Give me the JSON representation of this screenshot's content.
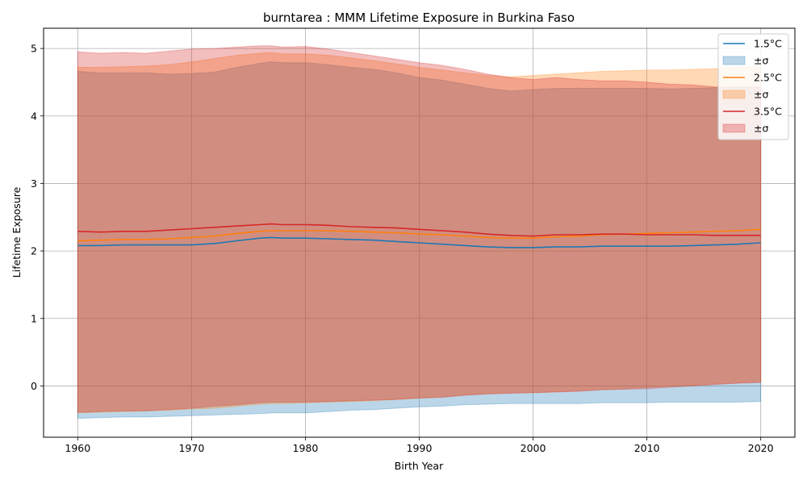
{
  "chart_data": {
    "type": "line",
    "title": "burntarea : MMM Lifetime Exposure in Burkina Faso",
    "xlabel": "Birth Year",
    "ylabel": "Lifetime Exposure",
    "xlim": [
      1957,
      2023
    ],
    "ylim": [
      -0.76,
      5.3
    ],
    "xticks": [
      1960,
      1970,
      1980,
      1990,
      2000,
      2010,
      2020
    ],
    "yticks": [
      0,
      1,
      2,
      3,
      4,
      5
    ],
    "grid": true,
    "legend_position": "top-right",
    "x": [
      1960,
      1962,
      1964,
      1966,
      1968,
      1970,
      1972,
      1974,
      1976,
      1977,
      1978,
      1980,
      1982,
      1984,
      1986,
      1988,
      1990,
      1992,
      1994,
      1996,
      1998,
      2000,
      2002,
      2004,
      2006,
      2008,
      2010,
      2012,
      2014,
      2016,
      2018,
      2020
    ],
    "series": [
      {
        "name": "1.5°C",
        "color": "#1f77b4",
        "band_color": "#1f77b4",
        "band_label": "±σ",
        "mean": [
          2.08,
          2.08,
          2.09,
          2.09,
          2.09,
          2.09,
          2.11,
          2.15,
          2.19,
          2.2,
          2.19,
          2.19,
          2.18,
          2.17,
          2.16,
          2.14,
          2.12,
          2.1,
          2.08,
          2.06,
          2.05,
          2.05,
          2.06,
          2.06,
          2.07,
          2.07,
          2.07,
          2.07,
          2.08,
          2.09,
          2.1,
          2.12
        ],
        "upper": [
          4.66,
          4.64,
          4.64,
          4.64,
          4.62,
          4.63,
          4.65,
          4.72,
          4.78,
          4.8,
          4.79,
          4.79,
          4.76,
          4.72,
          4.69,
          4.64,
          4.57,
          4.53,
          4.47,
          4.41,
          4.37,
          4.39,
          4.41,
          4.41,
          4.41,
          4.41,
          4.41,
          4.4,
          4.41,
          4.42,
          4.43,
          4.43
        ],
        "lower": [
          -0.48,
          -0.47,
          -0.46,
          -0.46,
          -0.45,
          -0.44,
          -0.43,
          -0.42,
          -0.41,
          -0.4,
          -0.4,
          -0.4,
          -0.38,
          -0.36,
          -0.35,
          -0.33,
          -0.31,
          -0.3,
          -0.28,
          -0.27,
          -0.26,
          -0.26,
          -0.26,
          -0.26,
          -0.25,
          -0.25,
          -0.25,
          -0.24,
          -0.24,
          -0.24,
          -0.24,
          -0.23
        ]
      },
      {
        "name": "2.5°C",
        "color": "#ff7f0e",
        "band_color": "#ff7f0e",
        "band_label": "±σ",
        "mean": [
          2.15,
          2.16,
          2.17,
          2.17,
          2.18,
          2.2,
          2.22,
          2.26,
          2.29,
          2.3,
          2.3,
          2.3,
          2.3,
          2.29,
          2.28,
          2.27,
          2.25,
          2.24,
          2.22,
          2.2,
          2.19,
          2.19,
          2.21,
          2.22,
          2.24,
          2.25,
          2.26,
          2.27,
          2.28,
          2.29,
          2.3,
          2.32
        ],
        "upper": [
          4.72,
          4.72,
          4.73,
          4.74,
          4.76,
          4.8,
          4.85,
          4.9,
          4.93,
          4.94,
          4.92,
          4.92,
          4.9,
          4.86,
          4.82,
          4.77,
          4.72,
          4.68,
          4.64,
          4.6,
          4.58,
          4.6,
          4.62,
          4.64,
          4.66,
          4.67,
          4.68,
          4.68,
          4.69,
          4.7,
          4.72,
          4.74
        ],
        "lower": [
          -0.4,
          -0.39,
          -0.38,
          -0.37,
          -0.36,
          -0.34,
          -0.33,
          -0.3,
          -0.27,
          -0.26,
          -0.26,
          -0.25,
          -0.24,
          -0.23,
          -0.22,
          -0.2,
          -0.18,
          -0.16,
          -0.13,
          -0.11,
          -0.1,
          -0.1,
          -0.09,
          -0.07,
          -0.05,
          -0.04,
          -0.02,
          0.0,
          0.01,
          0.03,
          0.05,
          0.06
        ]
      },
      {
        "name": "3.5°C",
        "color": "#d62728",
        "band_color": "#d62728",
        "band_label": "±σ",
        "mean": [
          2.29,
          2.28,
          2.29,
          2.29,
          2.31,
          2.33,
          2.35,
          2.37,
          2.39,
          2.4,
          2.39,
          2.39,
          2.38,
          2.36,
          2.35,
          2.34,
          2.32,
          2.3,
          2.28,
          2.25,
          2.23,
          2.22,
          2.24,
          2.24,
          2.25,
          2.25,
          2.24,
          2.24,
          2.24,
          2.23,
          2.23,
          2.23
        ],
        "upper": [
          4.95,
          4.93,
          4.94,
          4.93,
          4.96,
          4.99,
          5.0,
          5.02,
          5.04,
          5.04,
          5.02,
          5.03,
          4.99,
          4.94,
          4.89,
          4.84,
          4.79,
          4.75,
          4.69,
          4.62,
          4.57,
          4.54,
          4.57,
          4.54,
          4.52,
          4.52,
          4.5,
          4.47,
          4.46,
          4.43,
          4.43,
          4.43
        ],
        "lower": [
          -0.39,
          -0.38,
          -0.37,
          -0.37,
          -0.35,
          -0.33,
          -0.3,
          -0.28,
          -0.25,
          -0.24,
          -0.24,
          -0.24,
          -0.23,
          -0.22,
          -0.21,
          -0.2,
          -0.18,
          -0.17,
          -0.14,
          -0.12,
          -0.11,
          -0.1,
          -0.09,
          -0.08,
          -0.06,
          -0.05,
          -0.04,
          -0.02,
          -0.0,
          0.02,
          0.04,
          0.05
        ]
      }
    ]
  }
}
